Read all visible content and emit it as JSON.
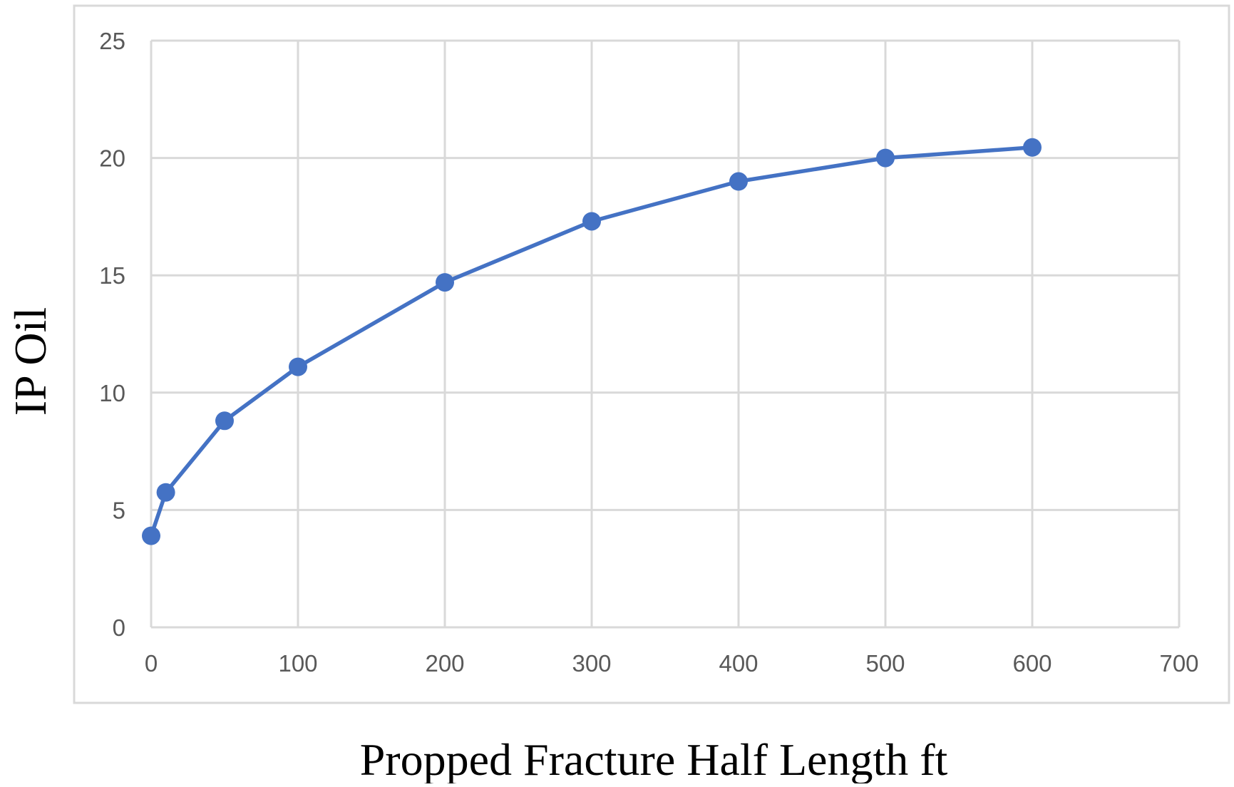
{
  "chart_data": {
    "type": "line",
    "title": "",
    "xlabel": "Propped Fracture Half Length ft",
    "ylabel": "IP Oil",
    "xlim": [
      0,
      700
    ],
    "ylim": [
      0,
      25
    ],
    "x_ticks": [
      "0",
      "100",
      "200",
      "300",
      "400",
      "500",
      "600",
      "700"
    ],
    "y_ticks": [
      "0",
      "5",
      "10",
      "15",
      "20",
      "25"
    ],
    "grid": true,
    "legend": "none",
    "markers": true,
    "series": [
      {
        "x": [
          0,
          10,
          50,
          100,
          200,
          300,
          400,
          500,
          600
        ],
        "y": [
          3.9,
          5.75,
          8.8,
          11.1,
          14.7,
          17.3,
          19.0,
          20.0,
          20.45
        ]
      }
    ],
    "colors": {
      "series": "#4472C4",
      "grid": "#D9D9D9",
      "frame": "#D9D9D9",
      "ticks": "#595959"
    }
  }
}
